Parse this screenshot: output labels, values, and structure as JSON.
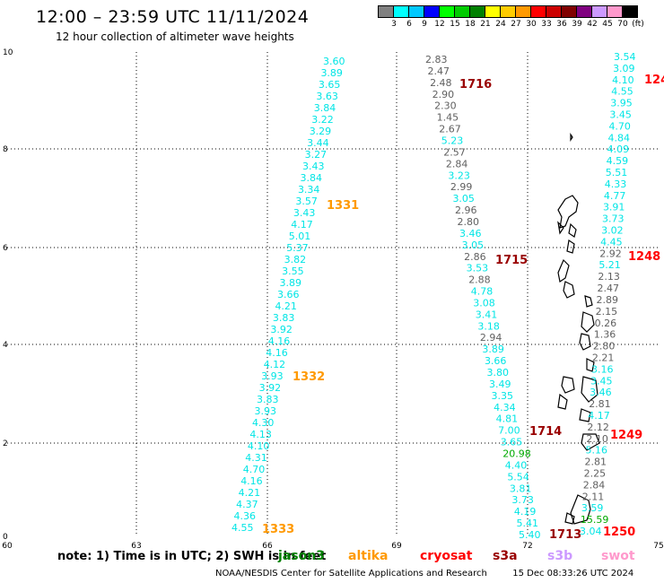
{
  "header": {
    "title": "12:00 – 23:59 UTC 11/11/2024",
    "subtitle": "12 hour collection of altimeter wave heights"
  },
  "legend": {
    "unit": "(ft)",
    "colors": [
      "#808080",
      "#00ffff",
      "#00c8ff",
      "#0000ff",
      "#00ff00",
      "#00cc00",
      "#008000",
      "#ffff00",
      "#ffcc00",
      "#ff9900",
      "#ff0000",
      "#cc0000",
      "#800000",
      "#800080",
      "#cc99ff",
      "#ff99cc",
      "#000000"
    ],
    "labels": [
      "3",
      "6",
      "9",
      "12",
      "15",
      "18",
      "21",
      "24",
      "27",
      "30",
      "33",
      "36",
      "39",
      "42",
      "45",
      "70"
    ]
  },
  "axes": {
    "x_ticks": [
      "60",
      "63",
      "66",
      "69",
      "72",
      "75"
    ],
    "y_ticks": [
      "0",
      "2",
      "4",
      "6",
      "8",
      "10"
    ]
  },
  "passes": [
    {
      "id": "1331",
      "color": "#ff9900"
    },
    {
      "id": "1332",
      "color": "#ff9900"
    },
    {
      "id": "1333",
      "color": "#ff9900"
    },
    {
      "id": "1716",
      "color": "#990000"
    },
    {
      "id": "1715",
      "color": "#990000"
    },
    {
      "id": "1714",
      "color": "#990000"
    },
    {
      "id": "1713",
      "color": "#990000"
    },
    {
      "id": "124",
      "color": "#ff0000"
    },
    {
      "id": "1248",
      "color": "#ff0000"
    },
    {
      "id": "1249",
      "color": "#ff0000"
    },
    {
      "id": "1250",
      "color": "#ff0000"
    }
  ],
  "tracks": {
    "altika": {
      "color": "#00e5e5",
      "values": [
        "3.60",
        "3.89",
        "3.65",
        "3.63",
        "3.84",
        "3.22",
        "3.29",
        "3.44",
        "3.27",
        "3.43",
        "3.84",
        "3.34",
        "3.57",
        "3.43",
        "4.17",
        "5.01",
        "5.37",
        "3.82",
        "3.55",
        "3.89",
        "3.66",
        "4.21",
        "3.83",
        "3.92",
        "4.16",
        "4.16",
        "4.12",
        "3.93",
        "3.92",
        "3.83",
        "3.93",
        "4.30",
        "4.13",
        "4.10",
        "4.31",
        "4.70",
        "4.16",
        "4.21",
        "4.37",
        "4.36",
        "4.55"
      ]
    },
    "cryosat": {
      "values": [
        "2.83",
        "2.47",
        "2.48",
        "2.90",
        "2.30",
        "1.45",
        "2.67",
        "5.23",
        "2.57",
        "2.84",
        "3.23",
        "2.99",
        "3.05",
        "2.96",
        "2.80",
        "3.46",
        "3.05",
        "2.86",
        "3.53",
        "2.88",
        "4.78",
        "3.08",
        "3.41",
        "3.18",
        "2.94",
        "3.89",
        "3.66",
        "3.80",
        "3.49",
        "3.35",
        "4.34",
        "4.81",
        "7.00",
        "3.65",
        "20.98",
        "4.40",
        "5.54",
        "3.81",
        "3.73",
        "4.19",
        "5.41",
        "5.40"
      ]
    },
    "s3a": {
      "values": [
        "3.54",
        "3.09",
        "4.10",
        "4.55",
        "3.95",
        "3.45",
        "4.70",
        "4.84",
        "4.09",
        "4.59",
        "5.51",
        "4.33",
        "4.77",
        "3.91",
        "3.73",
        "3.02",
        "4.45",
        "2.92",
        "5.21",
        "2.13",
        "2.47",
        "2.89",
        "2.15",
        "0.26",
        "1.36",
        "2.80",
        "2.21",
        "3.16",
        "3.45",
        "3.46",
        "2.81",
        "4.17",
        "2.12",
        "2.10",
        "5.16",
        "2.81",
        "2.25",
        "2.84",
        "2.11",
        "3.59",
        "15.59",
        "3.04"
      ]
    }
  },
  "notes": {
    "text": "note: 1) Time is in UTC; 2) SWH is in feet",
    "satellites": [
      {
        "name": "jason3",
        "color": "#008000"
      },
      {
        "name": "altika",
        "color": "#ff9900"
      },
      {
        "name": "cryosat",
        "color": "#ff0000"
      },
      {
        "name": "s3a",
        "color": "#990000"
      },
      {
        "name": "s3b",
        "color": "#cc99ff"
      },
      {
        "name": "swot",
        "color": "#ff99cc"
      }
    ]
  },
  "footer": {
    "credit": "NOAA/NESDIS Center for Satellite Applications and Research",
    "timestamp": "15 Dec 08:33:26 UTC 2024"
  }
}
